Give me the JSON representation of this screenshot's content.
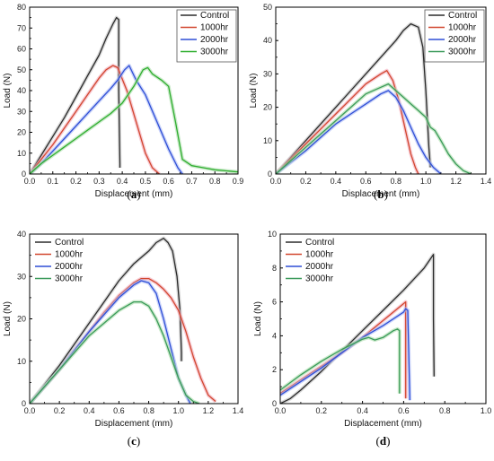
{
  "colors": {
    "control": "#2b2b2b",
    "h1000": "#d2472f",
    "h2000": "#2f4fd6",
    "h3000": "#2fae2f",
    "h3000_b": "#3a9a5a",
    "band_control": "#bdbdbd",
    "band_1000": "#f2a8b8",
    "band_2000": "#a9b8f5",
    "band_3000": "#a8dca8"
  },
  "chart_data": [
    {
      "type": "line",
      "caption": "(a)",
      "xlabel": "Displacement (mm)",
      "ylabel": "Load (N)",
      "xlim": [
        0,
        0.9
      ],
      "ylim": [
        0,
        80
      ],
      "xticks": [
        "0.0",
        "0.1",
        "0.2",
        "0.3",
        "0.4",
        "0.5",
        "0.6",
        "0.7",
        "0.8",
        "0.9"
      ],
      "yticks": [
        "0",
        "10",
        "20",
        "30",
        "40",
        "50",
        "60",
        "70",
        "80"
      ],
      "legend_position": "top-right",
      "series": [
        {
          "name": "Control",
          "color_key": "control",
          "x": [
            0.0,
            0.05,
            0.1,
            0.15,
            0.2,
            0.25,
            0.3,
            0.33,
            0.36,
            0.375,
            0.385,
            0.385,
            0.39,
            0.39
          ],
          "y": [
            0,
            9,
            18,
            27,
            37,
            47,
            57,
            65,
            72,
            75,
            74,
            40,
            5,
            3
          ]
        },
        {
          "name": "1000hr",
          "color_key": "h1000",
          "x": [
            0.0,
            0.05,
            0.1,
            0.15,
            0.2,
            0.25,
            0.3,
            0.33,
            0.36,
            0.38,
            0.42,
            0.46,
            0.5,
            0.53,
            0.56
          ],
          "y": [
            0,
            7,
            14,
            22,
            30,
            38,
            46,
            50,
            52,
            51,
            40,
            25,
            10,
            3,
            0
          ]
        },
        {
          "name": "2000hr",
          "color_key": "h2000",
          "x": [
            0.0,
            0.05,
            0.1,
            0.15,
            0.2,
            0.25,
            0.3,
            0.35,
            0.38,
            0.41,
            0.43,
            0.46,
            0.5,
            0.55,
            0.6,
            0.64,
            0.66
          ],
          "y": [
            0,
            5,
            11,
            17,
            23,
            29,
            35,
            41,
            45,
            50,
            52,
            45,
            38,
            25,
            12,
            3,
            0
          ]
        },
        {
          "name": "3000hr",
          "color_key": "h3000",
          "x": [
            0.0,
            0.05,
            0.1,
            0.15,
            0.2,
            0.25,
            0.3,
            0.35,
            0.4,
            0.45,
            0.49,
            0.51,
            0.53,
            0.57,
            0.6,
            0.63,
            0.66,
            0.7,
            0.75,
            0.8,
            0.85,
            0.9
          ],
          "y": [
            0,
            5,
            9,
            13,
            17,
            21,
            25,
            29,
            34,
            42,
            50,
            51,
            48,
            45,
            42,
            25,
            7,
            4,
            3,
            2,
            1.5,
            1
          ]
        }
      ]
    },
    {
      "type": "line",
      "caption": "(b)",
      "xlabel": "Displacement (mm)",
      "ylabel": "Load (N)",
      "xlim": [
        0,
        1.4
      ],
      "ylim": [
        0,
        50
      ],
      "xticks": [
        "0.0",
        "0.2",
        "0.4",
        "0.6",
        "0.8",
        "1.0",
        "1.2",
        "1.4"
      ],
      "yticks": [
        "0",
        "10",
        "20",
        "30",
        "40",
        "50"
      ],
      "legend_position": "top-right",
      "series": [
        {
          "name": "Control",
          "color_key": "control",
          "x": [
            0.0,
            0.1,
            0.2,
            0.3,
            0.4,
            0.5,
            0.6,
            0.7,
            0.8,
            0.85,
            0.9,
            0.95,
            0.98,
            1.0,
            1.02,
            1.03
          ],
          "y": [
            0,
            5,
            10,
            15,
            20,
            25,
            30,
            35,
            40,
            43,
            45,
            44,
            38,
            25,
            8,
            2
          ]
        },
        {
          "name": "1000hr",
          "color_key": "h1000",
          "x": [
            0.0,
            0.1,
            0.2,
            0.3,
            0.4,
            0.5,
            0.6,
            0.7,
            0.74,
            0.78,
            0.82,
            0.86,
            0.9,
            0.93,
            0.95
          ],
          "y": [
            0,
            4.5,
            9,
            13.5,
            18,
            22.5,
            27,
            30,
            31,
            28,
            22,
            14,
            6,
            2,
            0
          ]
        },
        {
          "name": "2000hr",
          "color_key": "h2000",
          "x": [
            0.0,
            0.1,
            0.2,
            0.3,
            0.4,
            0.5,
            0.6,
            0.7,
            0.75,
            0.8,
            0.85,
            0.9,
            0.95,
            1.0,
            1.05,
            1.1
          ],
          "y": [
            0,
            3.5,
            7,
            11,
            15,
            18,
            21,
            24,
            25,
            23,
            19,
            14,
            9,
            5,
            2,
            0
          ]
        },
        {
          "name": "3000hr",
          "color_key": "h3000_b",
          "x": [
            0.0,
            0.1,
            0.2,
            0.3,
            0.4,
            0.5,
            0.6,
            0.7,
            0.75,
            0.8,
            0.85,
            0.9,
            0.95,
            1.0,
            1.03,
            1.06,
            1.1,
            1.15,
            1.2,
            1.25,
            1.3
          ],
          "y": [
            0,
            4,
            8,
            12,
            16,
            20,
            24,
            26,
            27,
            25,
            23,
            21,
            19,
            17,
            14,
            13,
            10,
            6,
            3,
            1,
            0
          ]
        }
      ]
    },
    {
      "type": "line",
      "caption": "(c)",
      "xlabel": "Displacement (mm)",
      "ylabel": "Load (N)",
      "xlim": [
        0,
        1.4
      ],
      "ylim": [
        0,
        40
      ],
      "xticks": [
        "0.0",
        "0.2",
        "0.4",
        "0.6",
        "0.8",
        "1.0",
        "1.2",
        "1.4"
      ],
      "yticks": [
        "0",
        "10",
        "20",
        "30",
        "40"
      ],
      "legend_position": "top-left",
      "series": [
        {
          "name": "Control",
          "color_key": "control",
          "x": [
            0.0,
            0.1,
            0.2,
            0.3,
            0.4,
            0.5,
            0.6,
            0.7,
            0.8,
            0.85,
            0.9,
            0.93,
            0.96,
            0.99,
            1.01,
            1.02,
            1.02
          ],
          "y": [
            0,
            4.5,
            9,
            14,
            19,
            24,
            29,
            33,
            36,
            38,
            39,
            38,
            36,
            30,
            22,
            12,
            10
          ]
        },
        {
          "name": "1000hr",
          "color_key": "h1000",
          "x": [
            0.0,
            0.1,
            0.2,
            0.3,
            0.4,
            0.5,
            0.6,
            0.7,
            0.75,
            0.8,
            0.85,
            0.9,
            0.95,
            1.0,
            1.05,
            1.1,
            1.15,
            1.2,
            1.25
          ],
          "y": [
            0,
            4,
            8,
            12.5,
            17,
            21.5,
            25.5,
            28.5,
            29.5,
            29.5,
            28.5,
            27,
            25,
            22,
            17,
            11,
            6,
            2,
            0.5
          ]
        },
        {
          "name": "2000hr",
          "color_key": "h2000",
          "x": [
            0.0,
            0.1,
            0.2,
            0.3,
            0.4,
            0.5,
            0.6,
            0.7,
            0.75,
            0.8,
            0.85,
            0.9,
            0.95,
            1.0,
            1.05,
            1.08
          ],
          "y": [
            0,
            4,
            8,
            12.5,
            17,
            21,
            25,
            28,
            29,
            28.5,
            26,
            20,
            13,
            6,
            2,
            0
          ]
        },
        {
          "name": "3000hr",
          "color_key": "h3000_b",
          "x": [
            0.0,
            0.1,
            0.2,
            0.3,
            0.4,
            0.5,
            0.6,
            0.7,
            0.75,
            0.8,
            0.85,
            0.9,
            0.95,
            1.0,
            1.05,
            1.1,
            1.14
          ],
          "y": [
            0,
            4,
            8,
            12,
            16,
            19,
            22,
            24,
            24,
            23,
            20,
            16,
            11,
            6,
            2,
            0.5,
            0
          ]
        }
      ]
    },
    {
      "type": "line",
      "caption": "(d)",
      "xlabel": "Displacement (mm)",
      "ylabel": "Load (N)",
      "xlim": [
        0,
        1.0
      ],
      "ylim": [
        0,
        10
      ],
      "xticks": [
        "0.0",
        "0.2",
        "0.4",
        "0.6",
        "0.8",
        "1.0"
      ],
      "yticks": [
        "0",
        "2",
        "4",
        "6",
        "8",
        "10"
      ],
      "legend_position": "top-left",
      "series": [
        {
          "name": "Control",
          "color_key": "control",
          "x": [
            0.0,
            0.05,
            0.1,
            0.2,
            0.3,
            0.4,
            0.5,
            0.6,
            0.7,
            0.745,
            0.745,
            0.748
          ],
          "y": [
            0,
            0.3,
            0.8,
            1.9,
            3.1,
            4.3,
            5.5,
            6.7,
            8.0,
            8.8,
            5.0,
            1.6
          ]
        },
        {
          "name": "1000hr",
          "color_key": "h1000",
          "x": [
            0.0,
            0.1,
            0.2,
            0.3,
            0.4,
            0.5,
            0.6,
            0.61,
            0.61
          ],
          "y": [
            0.6,
            1.4,
            2.2,
            3.0,
            3.9,
            4.9,
            5.9,
            6.0,
            0.3
          ]
        },
        {
          "name": "2000hr",
          "color_key": "h2000",
          "x": [
            0.0,
            0.1,
            0.2,
            0.3,
            0.4,
            0.5,
            0.55,
            0.6,
            0.61,
            0.62,
            0.63
          ],
          "y": [
            0.5,
            1.3,
            2.1,
            3.0,
            3.9,
            4.6,
            5.0,
            5.4,
            5.6,
            5.5,
            0.2
          ]
        },
        {
          "name": "3000hr",
          "color_key": "h3000_b",
          "x": [
            0.0,
            0.1,
            0.2,
            0.3,
            0.4,
            0.43,
            0.46,
            0.5,
            0.55,
            0.57,
            0.58,
            0.58
          ],
          "y": [
            0.8,
            1.7,
            2.5,
            3.2,
            3.8,
            3.9,
            3.75,
            3.9,
            4.3,
            4.4,
            4.3,
            0.6
          ]
        }
      ]
    }
  ]
}
